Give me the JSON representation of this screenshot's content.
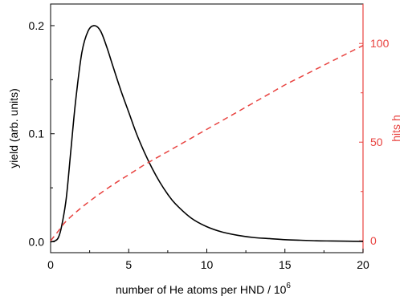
{
  "chart_data": {
    "type": "line",
    "xlabel": "number of He atoms per HND / 10",
    "xlabel_sup": "6",
    "ylabel": "yield (arb. units)",
    "y2label": "hits h",
    "xlim": [
      0,
      20
    ],
    "ylim": [
      -0.01,
      0.22
    ],
    "y2lim": [
      -6,
      120
    ],
    "xticks": [
      0,
      5,
      10,
      15,
      20
    ],
    "xtick_labels": [
      "0",
      "5",
      "10",
      "15",
      "20"
    ],
    "yticks": [
      0.0,
      0.1,
      0.2
    ],
    "ytick_labels": [
      "0.0",
      "0.1",
      "0.2"
    ],
    "y2ticks": [
      0,
      50,
      100
    ],
    "y2tick_labels": [
      "0",
      "50",
      "100"
    ],
    "grid": false,
    "colors": {
      "primary": "#000000",
      "secondary": "#e8423f"
    },
    "series": [
      {
        "axis": "left",
        "style": "solid",
        "x": [
          0,
          0.3,
          0.5,
          0.7,
          1.0,
          1.3,
          1.6,
          2.0,
          2.4,
          2.8,
          3.2,
          3.6,
          4.0,
          4.5,
          5.0,
          5.5,
          6.0,
          6.5,
          7.0,
          7.5,
          8.0,
          9.0,
          10.0,
          11.0,
          12.0,
          13.0,
          14.0,
          15.0,
          16.0,
          17.0,
          18.0,
          19.0,
          20.0
        ],
        "y": [
          0.0,
          0.001,
          0.004,
          0.014,
          0.04,
          0.085,
          0.13,
          0.175,
          0.195,
          0.2,
          0.195,
          0.18,
          0.162,
          0.14,
          0.12,
          0.1,
          0.083,
          0.068,
          0.055,
          0.044,
          0.035,
          0.022,
          0.014,
          0.009,
          0.006,
          0.004,
          0.003,
          0.002,
          0.0015,
          0.001,
          0.0008,
          0.0006,
          0.0004
        ]
      },
      {
        "axis": "right",
        "style": "dashed",
        "x": [
          0,
          0.5,
          1,
          2,
          3,
          4,
          5,
          6,
          7,
          8,
          9,
          10,
          11,
          12,
          13,
          14,
          15,
          16,
          17,
          18,
          19,
          20
        ],
        "y": [
          0,
          5,
          10,
          17,
          23,
          28.5,
          33.5,
          38.5,
          43,
          47.5,
          52,
          56.5,
          61,
          65.5,
          70,
          74.5,
          79,
          83,
          87,
          91,
          95,
          99
        ]
      }
    ]
  }
}
